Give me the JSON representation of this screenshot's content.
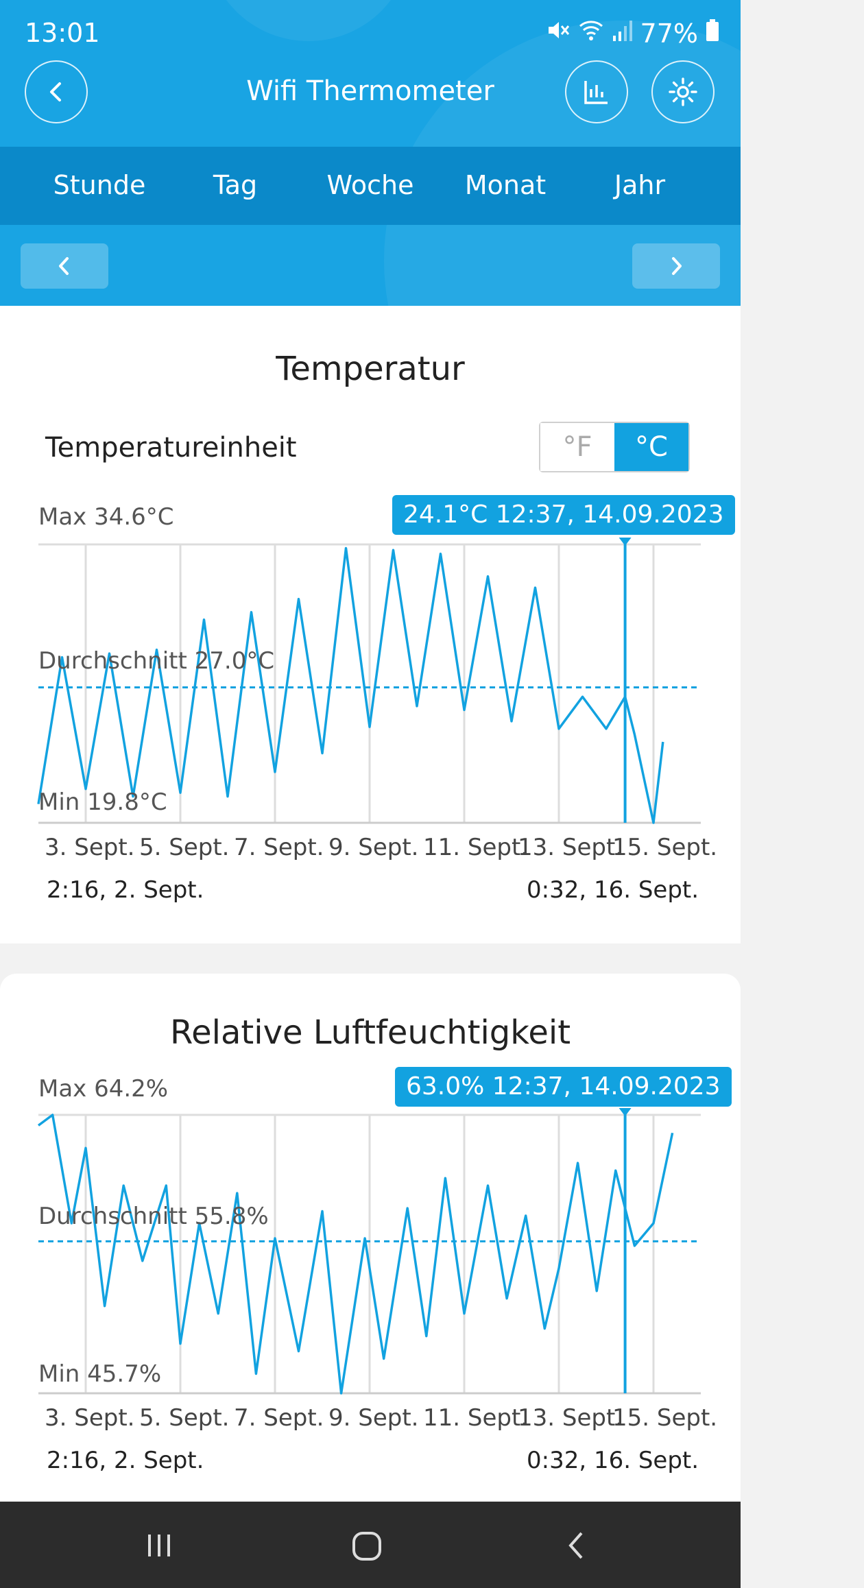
{
  "status_bar": {
    "time": "13:01",
    "battery": "77%"
  },
  "header": {
    "title": "Wifi Thermometer"
  },
  "tabs": [
    "Stunde",
    "Tag",
    "Woche",
    "Monat",
    "Jahr"
  ],
  "temperature": {
    "title": "Temperatur",
    "unit_label": "Temperatureinheit",
    "unit_f": "°F",
    "unit_c": "°C",
    "max_label": "Max 34.6°C",
    "avg_label": "Durchschnitt 27.0°C",
    "min_label": "Min 19.8°C",
    "badge": "24.1°C 12:37,  14.09.2023",
    "range_start": "2:16,  2. Sept.",
    "range_end": "0:32,  16. Sept."
  },
  "humidity": {
    "title": "Relative Luftfeuchtigkeit",
    "max_label": "Max 64.2%",
    "avg_label": "Durchschnitt 55.8%",
    "min_label": "Min 45.7%",
    "badge": "63.0% 12:37,  14.09.2023",
    "range_start": "2:16,  2. Sept.",
    "range_end": "0:32,  16. Sept."
  },
  "chart_data": [
    {
      "type": "line",
      "title": "Temperatur",
      "x_tick_labels": [
        "3. Sept.",
        "5. Sept.",
        "7. Sept.",
        "9. Sept.",
        "11. Sept.",
        "13. Sept.",
        "15. Sept."
      ],
      "ylim": [
        19.8,
        34.6
      ],
      "average": 27.0,
      "marker": {
        "value": 24.1,
        "time": "12:37, 14.09.2023"
      },
      "x": [
        0,
        0.5,
        1,
        1.5,
        2,
        2.5,
        3,
        3.5,
        4,
        4.5,
        5,
        5.5,
        6,
        6.5,
        7,
        7.5,
        8,
        8.5,
        9,
        9.5,
        10,
        10.5,
        11,
        11.5,
        12,
        12.4,
        12.6,
        13,
        13.2,
        13.4,
        13.9
      ],
      "values": [
        20.8,
        28.6,
        21.6,
        28.8,
        21.2,
        29.0,
        21.4,
        30.6,
        21.2,
        31.0,
        22.5,
        31.7,
        23.5,
        34.4,
        24.9,
        34.3,
        26.0,
        34.1,
        25.8,
        32.9,
        25.2,
        32.3,
        24.8,
        26.5,
        24.8,
        26.5,
        24.5,
        19.8,
        24.1,
        null,
        null
      ],
      "grid": true,
      "series": [
        {
          "name": "Temperatur"
        }
      ]
    },
    {
      "type": "line",
      "title": "Relative Luftfeuchtigkeit",
      "x_tick_labels": [
        "3. Sept.",
        "5. Sept.",
        "7. Sept.",
        "9. Sept.",
        "11. Sept.",
        "13. Sept.",
        "15. Sept."
      ],
      "ylim": [
        45.7,
        64.2
      ],
      "average": 55.8,
      "marker": {
        "value": 63.0,
        "time": "12:37, 14.09.2023"
      },
      "x": [
        0,
        0.3,
        0.7,
        1,
        1.4,
        1.8,
        2.2,
        2.7,
        3,
        3.4,
        3.8,
        4.2,
        4.6,
        5,
        5.5,
        6,
        6.4,
        6.9,
        7.3,
        7.8,
        8.2,
        8.6,
        9,
        9.5,
        9.9,
        10.3,
        10.7,
        11,
        11.4,
        11.8,
        12.2,
        12.6,
        13,
        13.4
      ],
      "values": [
        63.5,
        64.2,
        57.0,
        62.0,
        51.5,
        59.5,
        54.5,
        59.5,
        49.0,
        57.0,
        51.0,
        59.0,
        47.0,
        56.0,
        48.5,
        57.8,
        45.7,
        56.0,
        48.0,
        58.0,
        49.5,
        60.0,
        51.0,
        59.5,
        52.0,
        57.5,
        50.0,
        54.0,
        61.0,
        52.5,
        60.5,
        55.5,
        57.0,
        63.0
      ],
      "grid": true,
      "series": [
        {
          "name": "Relative Luftfeuchtigkeit"
        }
      ]
    }
  ]
}
